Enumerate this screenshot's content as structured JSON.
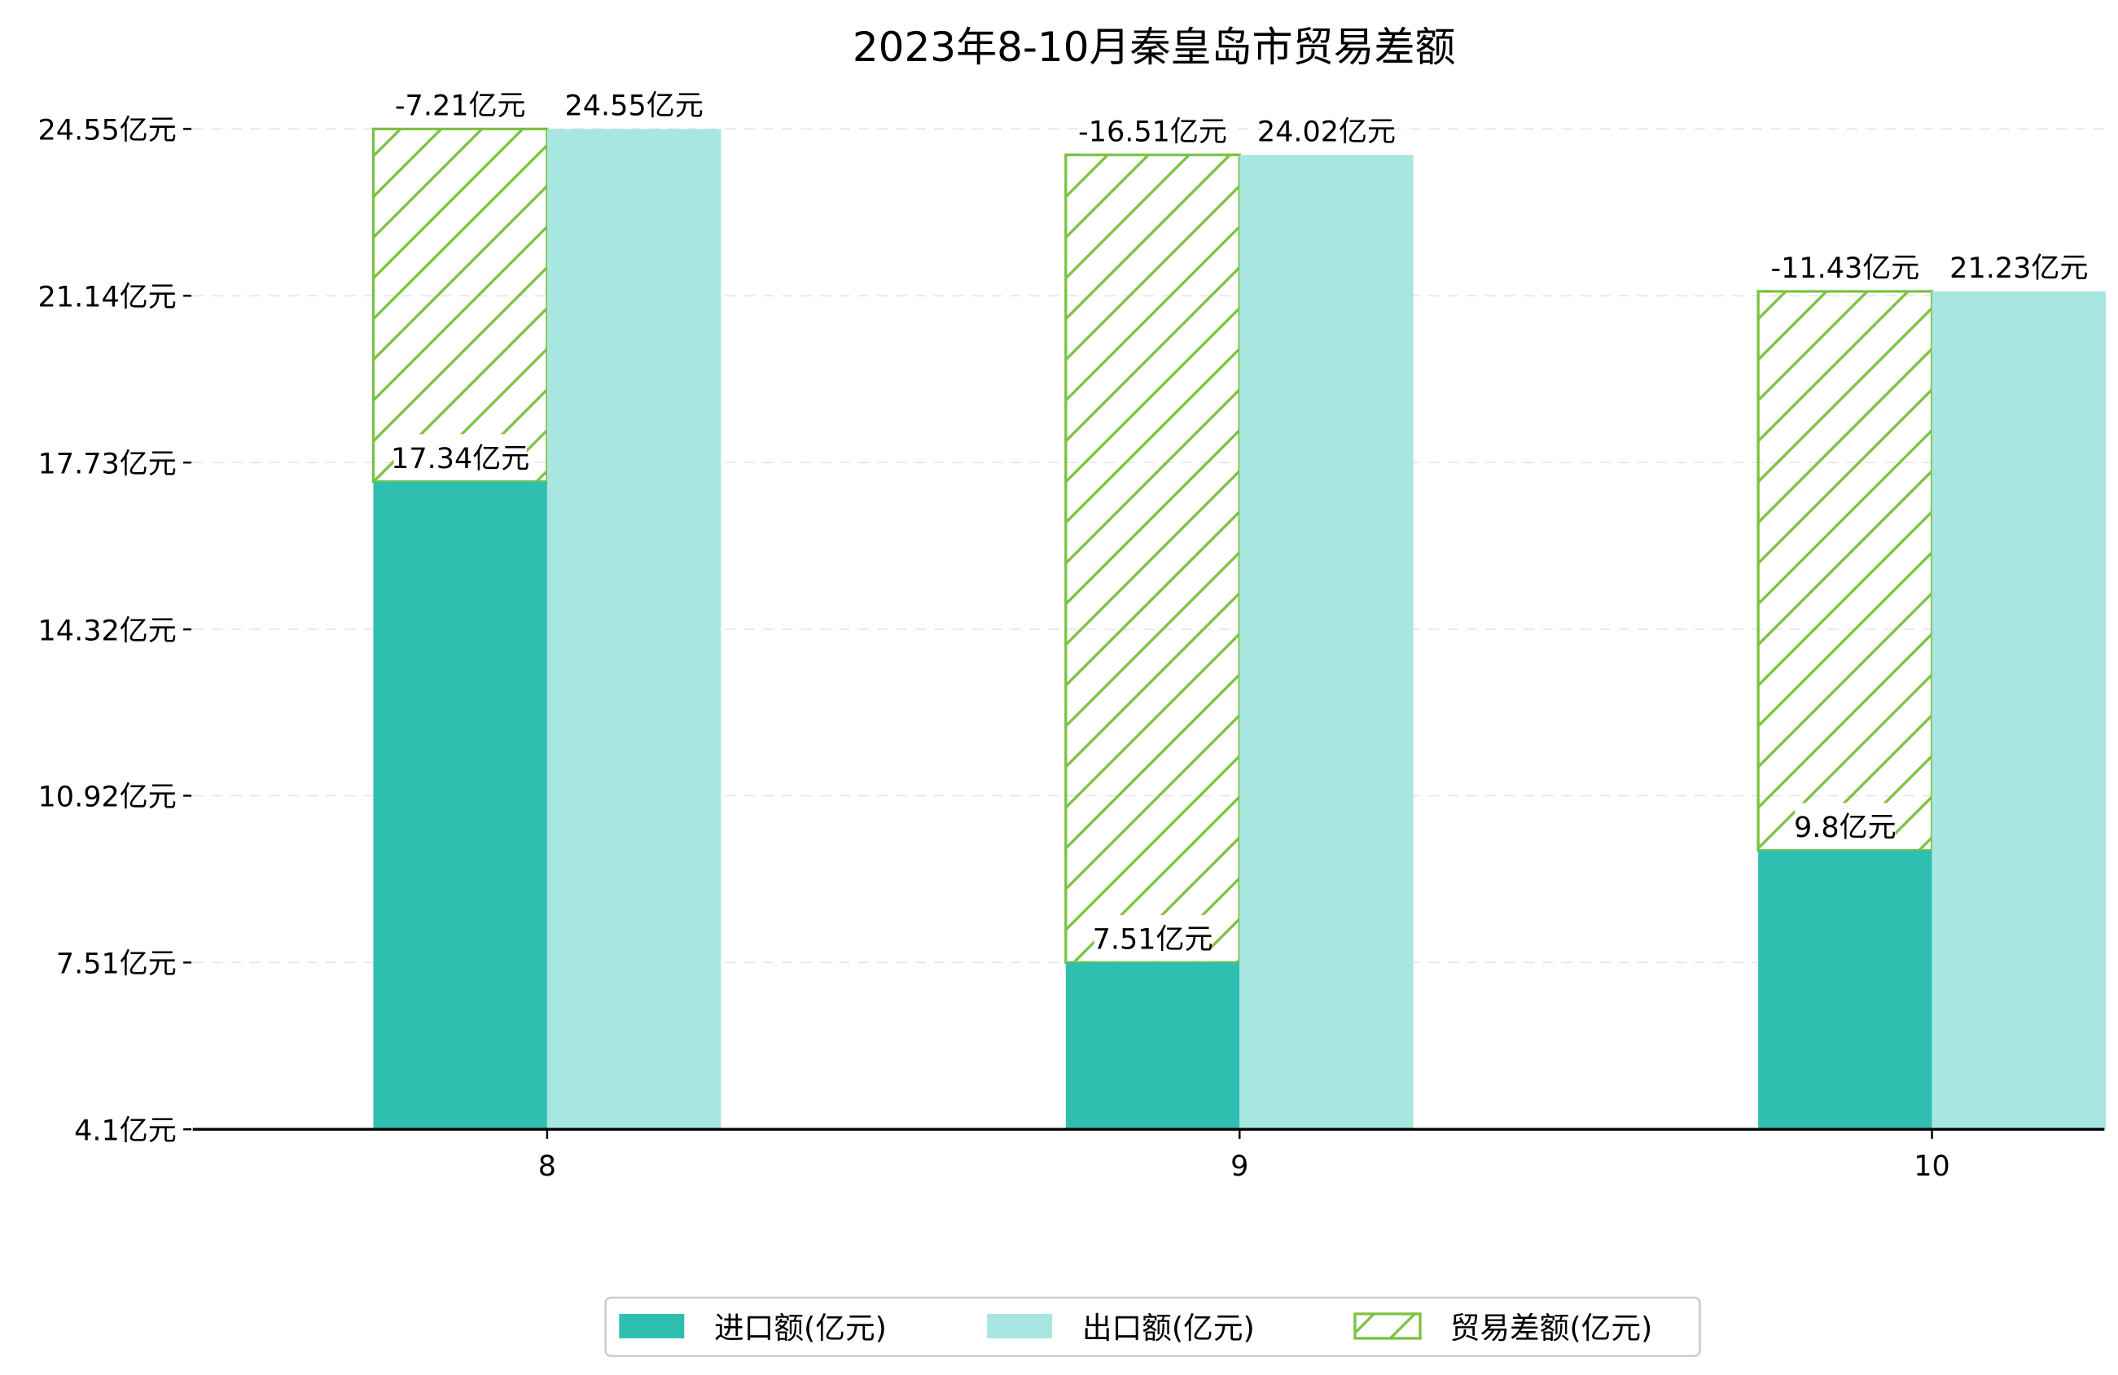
{
  "chart_data": {
    "type": "bar",
    "title": "2023年8-10月秦皇岛市贸易差额",
    "categories": [
      "8",
      "9",
      "10"
    ],
    "series": [
      {
        "name": "进口额(亿元)",
        "values": [
          17.34,
          7.51,
          9.8
        ],
        "labels": [
          "17.34亿元",
          "7.51亿元",
          "9.8亿元"
        ],
        "color": "#2ebfb1"
      },
      {
        "name": "出口额(亿元)",
        "values": [
          24.55,
          24.02,
          21.23
        ],
        "labels": [
          "24.55亿元",
          "24.02亿元",
          "21.23亿元"
        ],
        "color": "#a8e6e2"
      },
      {
        "name": "贸易差额(亿元)",
        "values": [
          -7.21,
          -16.51,
          -11.43
        ],
        "labels": [
          "-7.21亿元",
          "-16.51亿元",
          "-11.43亿元"
        ],
        "color": "#7cc242",
        "pattern": "hatch"
      }
    ],
    "yticks": [
      4.1,
      7.51,
      10.92,
      14.32,
      17.73,
      21.14,
      24.55
    ],
    "ytick_labels": [
      "4.1亿元",
      "7.51亿元",
      "10.92亿元",
      "14.32亿元",
      "17.73亿元",
      "21.14亿元",
      "24.55亿元"
    ],
    "ylim": [
      4.1,
      24.55
    ],
    "grid": true,
    "legend_position": "bottom-center",
    "xlabel": "",
    "ylabel": ""
  }
}
